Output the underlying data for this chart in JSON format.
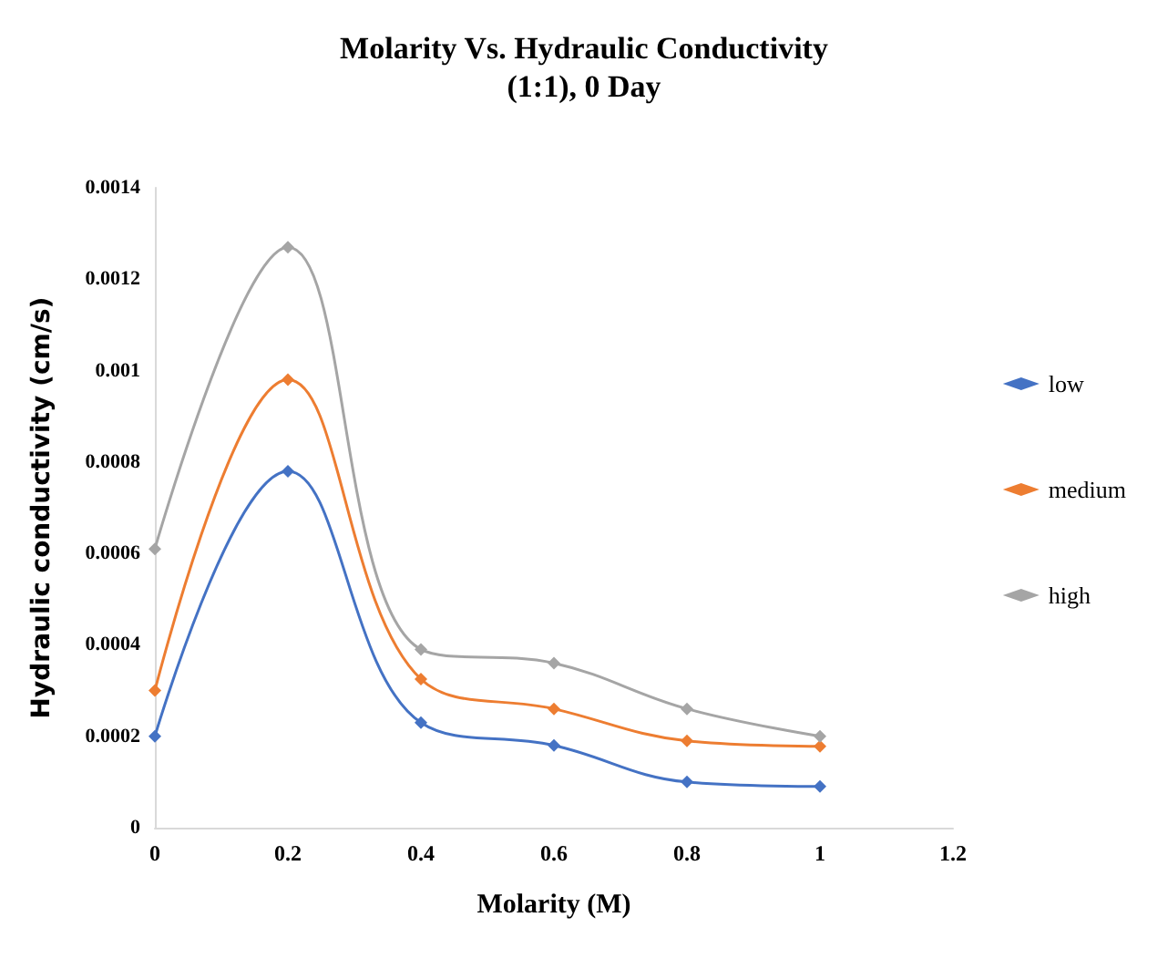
{
  "chart_data": {
    "type": "line",
    "title": "Molarity Vs. Hydraulic Conductivity",
    "subtitle": "(1:1), 0 Day",
    "xlabel": "Molarity (M)",
    "ylabel": "Hydraulic conductivity (cm/s)",
    "x": [
      0,
      0.2,
      0.4,
      0.6,
      0.8,
      1
    ],
    "series": [
      {
        "name": "low",
        "color": "#4472c4",
        "values": [
          0.0002,
          0.00078,
          0.00023,
          0.00018,
          0.0001,
          9e-05
        ]
      },
      {
        "name": "medium",
        "color": "#ed7d31",
        "values": [
          0.0003,
          0.00098,
          0.000325,
          0.00026,
          0.00019,
          0.000178
        ]
      },
      {
        "name": "high",
        "color": "#a5a5a5",
        "values": [
          0.00061,
          0.00127,
          0.00039,
          0.00036,
          0.00026,
          0.0002
        ]
      }
    ],
    "xlim": [
      0,
      1.2
    ],
    "xticks": [
      0,
      0.2,
      0.4,
      0.6,
      0.8,
      1,
      1.2
    ],
    "ylim": [
      0,
      0.0014
    ],
    "yticks": [
      0,
      0.0002,
      0.0004,
      0.0006,
      0.0008,
      0.001,
      0.0012,
      0.0014
    ],
    "grid": false,
    "legend": "right",
    "marker": "diamond",
    "line_style": "solid"
  }
}
